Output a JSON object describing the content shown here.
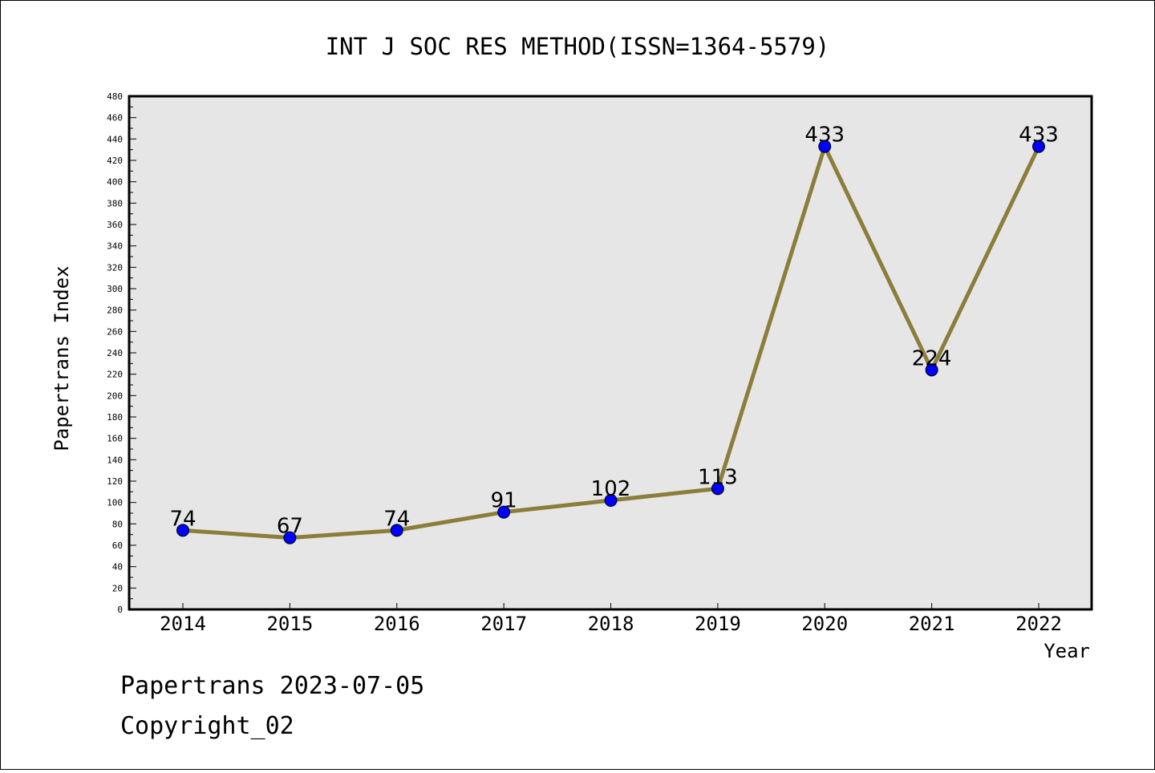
{
  "chart_data": {
    "type": "line",
    "title": "INT J SOC RES METHOD(ISSN=1364-5579)",
    "xlabel": "Year",
    "ylabel": "Papertrans Index",
    "categories": [
      "2014",
      "2015",
      "2016",
      "2017",
      "2018",
      "2019",
      "2020",
      "2021",
      "2022"
    ],
    "series": [
      {
        "values": [
          74,
          67,
          74,
          91,
          102,
          113,
          433,
          224,
          433
        ]
      }
    ],
    "data_labels": [
      "74",
      "67",
      "74",
      "91",
      "102",
      "113",
      "433",
      "224",
      "433"
    ],
    "ylim": [
      0,
      480
    ],
    "ytick_step": 20,
    "grid": false,
    "colors": {
      "line": "#8b7d3a",
      "marker": "#0000ff",
      "plot_background": "#e6e6e6"
    }
  },
  "footer": {
    "line1": "Papertrans 2023-07-05",
    "line2": "Copyright_02"
  }
}
